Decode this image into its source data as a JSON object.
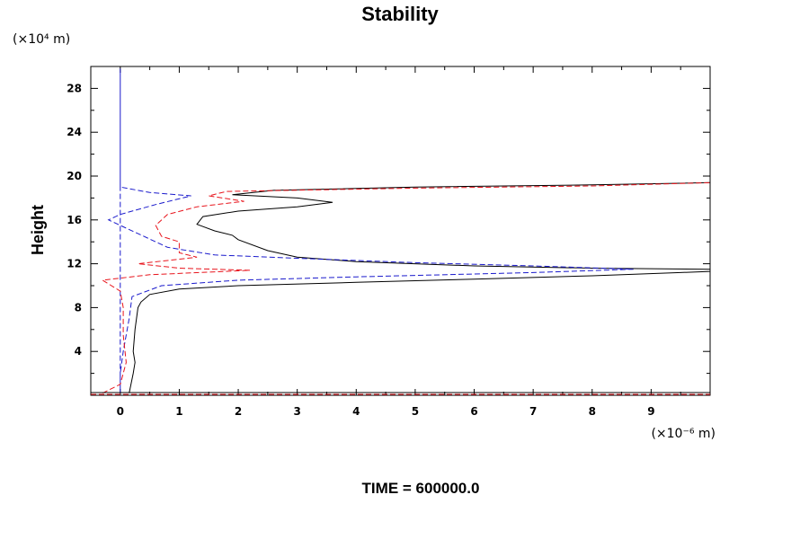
{
  "chart_data": {
    "type": "line",
    "title": "Stability",
    "ylabel": "Height",
    "x_unit": "(×10⁻⁶ m)",
    "y_unit": "(×10⁴ m)",
    "footer": "TIME = 600000.0",
    "xlim": [
      -0.5,
      10
    ],
    "ylim": [
      0,
      30
    ],
    "x_ticks": [
      0,
      1,
      2,
      3,
      4,
      5,
      6,
      7,
      8,
      9
    ],
    "y_ticks": [
      4,
      8,
      12,
      16,
      20,
      24,
      28
    ],
    "colors": {
      "black": "#000000",
      "red": "#e8141c",
      "blue": "#1a1acc"
    },
    "series": [
      {
        "color": "#000000",
        "dash": "solid",
        "points": [
          [
            0.15,
            0.2
          ],
          [
            0.22,
            2.0
          ],
          [
            0.25,
            3.0
          ],
          [
            0.22,
            4.0
          ],
          [
            0.25,
            6.0
          ],
          [
            0.3,
            8.0
          ],
          [
            0.35,
            8.5
          ],
          [
            0.5,
            9.2
          ],
          [
            1.0,
            9.7
          ],
          [
            2.0,
            10.0
          ],
          [
            4.0,
            10.3
          ],
          [
            6.0,
            10.6
          ],
          [
            8.0,
            10.9
          ],
          [
            9.5,
            11.2
          ],
          [
            10.0,
            11.3
          ],
          [
            10.0,
            11.5
          ],
          [
            8.0,
            11.6
          ],
          [
            6.0,
            11.8
          ],
          [
            4.0,
            12.2
          ],
          [
            3.0,
            12.6
          ],
          [
            2.5,
            13.2
          ],
          [
            2.0,
            14.2
          ],
          [
            1.9,
            14.6
          ],
          [
            1.6,
            15.0
          ],
          [
            1.3,
            15.6
          ],
          [
            1.4,
            16.3
          ],
          [
            2.0,
            16.8
          ],
          [
            3.0,
            17.2
          ],
          [
            3.6,
            17.6
          ],
          [
            3.0,
            18.0
          ],
          [
            1.9,
            18.3
          ],
          [
            2.6,
            18.7
          ],
          [
            5.0,
            19.0
          ],
          [
            8.0,
            19.2
          ],
          [
            10.0,
            19.4
          ]
        ]
      },
      {
        "color": "#1a1acc",
        "dash": "dashed",
        "points": [
          [
            0.0,
            0.2
          ],
          [
            0.0,
            29.8
          ],
          [
            0.0,
            19.0
          ],
          [
            0.5,
            18.5
          ],
          [
            1.2,
            18.2
          ],
          [
            0.6,
            17.4
          ],
          [
            0.0,
            16.5
          ],
          [
            -0.2,
            16.0
          ],
          [
            0.0,
            15.5
          ],
          [
            0.4,
            14.5
          ],
          [
            0.8,
            13.5
          ],
          [
            1.6,
            12.8
          ],
          [
            3.0,
            12.5
          ],
          [
            5.0,
            12.1
          ],
          [
            7.0,
            11.8
          ],
          [
            8.7,
            11.5
          ],
          [
            7.0,
            11.2
          ],
          [
            4.0,
            10.8
          ],
          [
            2.0,
            10.5
          ],
          [
            0.7,
            10.0
          ],
          [
            0.2,
            9.0
          ],
          [
            0.15,
            7.0
          ],
          [
            0.05,
            4.0
          ],
          [
            0.0,
            2.0
          ],
          [
            0.0,
            0.2
          ]
        ]
      },
      {
        "color": "#e8141c",
        "dash": "dashed",
        "points": [
          [
            -0.3,
            0.2
          ],
          [
            0.0,
            1.0
          ],
          [
            0.1,
            3.0
          ],
          [
            0.05,
            5.5
          ],
          [
            0.05,
            8.0
          ],
          [
            0.0,
            9.5
          ],
          [
            -0.3,
            10.5
          ],
          [
            0.5,
            11.0
          ],
          [
            2.2,
            11.4
          ],
          [
            1.0,
            11.6
          ],
          [
            0.3,
            12.0
          ],
          [
            1.3,
            12.6
          ],
          [
            1.0,
            13.0
          ],
          [
            1.0,
            14.0
          ],
          [
            0.7,
            14.5
          ],
          [
            0.6,
            15.5
          ],
          [
            0.8,
            16.5
          ],
          [
            1.3,
            17.2
          ],
          [
            2.1,
            17.7
          ],
          [
            1.5,
            18.2
          ],
          [
            1.8,
            18.6
          ],
          [
            5.0,
            18.9
          ],
          [
            8.0,
            19.1
          ],
          [
            10.0,
            19.4
          ]
        ]
      }
    ]
  }
}
